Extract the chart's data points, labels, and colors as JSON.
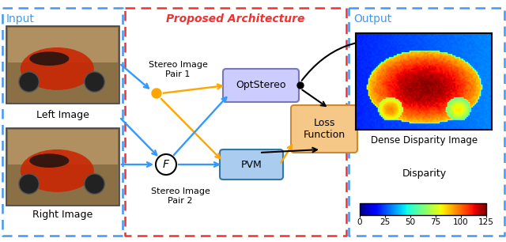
{
  "input_label": "Input",
  "arch_label": "Proposed Architecture",
  "output_label": "Output",
  "left_image_label": "Left Image",
  "right_image_label": "Right Image",
  "stereo_pair1_line1": "Stereo Image",
  "stereo_pair1_line2": "Pair 1",
  "stereo_pair2_line1": "Stereo Image",
  "stereo_pair2_line2": "Pair 2",
  "optstereo_label": "OptStereo",
  "pvm_label": "PVM",
  "loss_line1": "Loss",
  "loss_line2": "Function",
  "dense_disp_label": "Dense Disparity Image",
  "disparity_label": "Disparity",
  "disparity_ticks": [
    0,
    25,
    50,
    75,
    100,
    125
  ],
  "color_input_border": "#4499EE",
  "color_arch_border": "#EE3333",
  "color_output_border": "#4499EE",
  "color_input_title": "#4499EE",
  "color_arch_title": "#EE3333",
  "color_output_title": "#4499EE",
  "color_optstereo_fill": "#CCCCFF",
  "color_optstereo_edge": "#7777BB",
  "color_pvm_fill": "#AACCEE",
  "color_pvm_edge": "#3377AA",
  "color_loss_fill": "#F5C888",
  "color_loss_edge": "#CC8833",
  "color_orange": "#FFA500",
  "color_blue": "#3399FF",
  "color_black": "#000000",
  "bg": "#FFFFFF",
  "fig_w": 6.4,
  "fig_h": 3.06,
  "dpi": 100
}
